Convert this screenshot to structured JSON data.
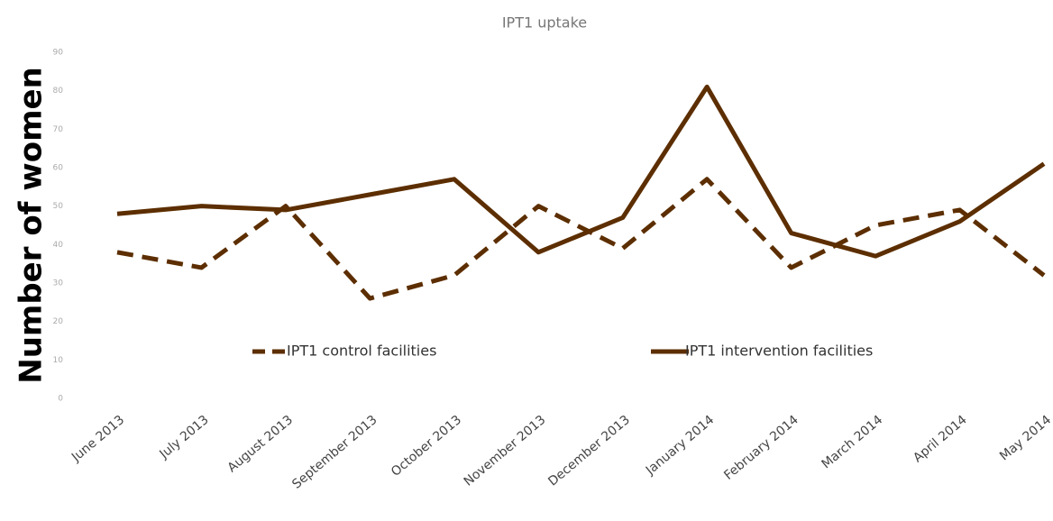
{
  "chart_data": {
    "type": "line",
    "title": "IPT1 uptake",
    "y_label": "Number of women",
    "categories": [
      "June 2013",
      "July 2013",
      "August 2013",
      "September 2013",
      "October 2013",
      "November 2013",
      "December 2013",
      "January 2014",
      "February 2014",
      "March 2014",
      "April 2014",
      "May 2014"
    ],
    "series": [
      {
        "name": "IPT1 control facilities",
        "color": "#5c2e00",
        "dashed": true,
        "values": [
          38,
          34,
          50,
          26,
          32,
          50,
          39,
          57,
          34,
          45,
          49,
          32
        ]
      },
      {
        "name": "IPT1 intervention facilities",
        "color": "#5c2e00",
        "dashed": false,
        "values": [
          48,
          50,
          49,
          53,
          57,
          38,
          47,
          81,
          43,
          37,
          46,
          61
        ]
      }
    ],
    "ylim": [
      0,
      90
    ],
    "yticks": [
      0,
      10,
      20,
      30,
      40,
      50,
      60,
      70,
      80,
      90
    ],
    "grid": false,
    "legend": "bottom"
  }
}
